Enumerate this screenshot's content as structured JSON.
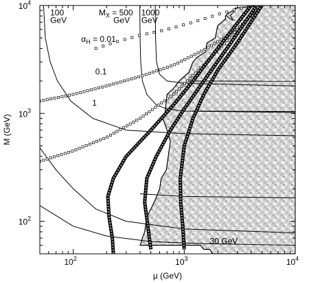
{
  "chart_data": {
    "type": "line",
    "title": "",
    "xlabel": "μ (GeV)",
    "ylabel": "M (GeV)",
    "xscale": "log",
    "yscale": "log",
    "xlim": [
      50,
      10000
    ],
    "ylim": [
      50,
      10000
    ],
    "x_ticks": [
      {
        "value": 100,
        "label": "10",
        "exp": "2"
      },
      {
        "value": 1000,
        "label": "10",
        "exp": "3"
      },
      {
        "value": 10000,
        "label": "10",
        "exp": "4"
      }
    ],
    "y_ticks": [
      {
        "value": 100,
        "label": "10",
        "exp": "2"
      },
      {
        "value": 1000,
        "label": "10",
        "exp": "3"
      },
      {
        "value": 10000,
        "label": "10",
        "exp": "4"
      }
    ],
    "excluded_region": {
      "style": "stippled-grey",
      "boundary": [
        [
          4800,
          10000
        ],
        [
          3000,
          9500
        ],
        [
          2500,
          8500
        ],
        [
          2350,
          8000
        ],
        [
          2350,
          7500
        ],
        [
          2000,
          6500
        ],
        [
          1900,
          5000
        ],
        [
          1600,
          4500
        ],
        [
          1550,
          3700
        ],
        [
          1300,
          3300
        ],
        [
          1200,
          3000
        ],
        [
          1100,
          2400
        ],
        [
          1000,
          2200
        ],
        [
          900,
          2000
        ],
        [
          800,
          1700
        ],
        [
          700,
          1500
        ],
        [
          670,
          1000
        ],
        [
          640,
          900
        ],
        [
          700,
          700
        ],
        [
          750,
          550
        ],
        [
          690,
          300
        ],
        [
          620,
          250
        ],
        [
          600,
          200
        ],
        [
          550,
          160
        ],
        [
          500,
          130
        ],
        [
          460,
          110
        ],
        [
          440,
          80
        ],
        [
          420,
          70
        ],
        [
          410,
          64
        ],
        [
          400,
          60
        ],
        [
          1400,
          60
        ],
        [
          1500,
          55
        ],
        [
          1700,
          55
        ],
        [
          1800,
          50
        ],
        [
          10000,
          50
        ],
        [
          10000,
          10000
        ]
      ]
    },
    "series": [
      {
        "name": "M_X = 100 GeV",
        "style": "solid-thin",
        "points": [
          [
            54,
            10000
          ],
          [
            56,
            5000
          ],
          [
            62,
            3000
          ],
          [
            72,
            2000
          ],
          [
            95,
            1300
          ],
          [
            150,
            900
          ],
          [
            300,
            700
          ],
          [
            1000,
            650
          ],
          [
            10000,
            620
          ]
        ]
      },
      {
        "name": "M_X = 500 GeV",
        "style": "solid-thin",
        "points": [
          [
            398,
            10000
          ],
          [
            400,
            5000
          ],
          [
            405,
            3000
          ],
          [
            420,
            2000
          ],
          [
            460,
            1500
          ],
          [
            560,
            1200
          ],
          [
            700,
            1100
          ],
          [
            1000,
            1050
          ],
          [
            10000,
            1020
          ]
        ]
      },
      {
        "name": "M_X = 1000 GeV",
        "style": "solid-thin",
        "points": [
          [
            548,
            10000
          ],
          [
            552,
            5000
          ],
          [
            562,
            3000
          ],
          [
            600,
            2300
          ],
          [
            700,
            2000
          ],
          [
            1000,
            1900
          ],
          [
            10000,
            1800
          ]
        ]
      },
      {
        "name": "M_X = 30 GeV",
        "style": "solid-thin",
        "points": [
          [
            50,
            480
          ],
          [
            70,
            300
          ],
          [
            100,
            200
          ],
          [
            160,
            130
          ],
          [
            300,
            100
          ],
          [
            1000,
            85
          ],
          [
            10000,
            78
          ]
        ]
      },
      {
        "name": "",
        "style": "solid-thin",
        "points": [
          [
            50,
            140
          ],
          [
            100,
            90
          ],
          [
            200,
            73
          ],
          [
            500,
            65
          ],
          [
            1500,
            62
          ],
          [
            10000,
            60
          ]
        ]
      },
      {
        "name": "",
        "style": "solid-thin",
        "points": [
          [
            400,
            180
          ],
          [
            1000,
            170
          ],
          [
            10000,
            165
          ]
        ]
      },
      {
        "name": "",
        "style": "solid-thin",
        "points": [
          [
            1300,
            1050
          ],
          [
            10000,
            1040
          ]
        ]
      },
      {
        "name": "",
        "style": "solid-thin",
        "points": [
          [
            1100,
            2000
          ],
          [
            10000,
            1990
          ]
        ]
      },
      {
        "name": "",
        "style": "solid-thin",
        "points": [
          [
            2900,
            9600
          ],
          [
            2820,
            9100
          ],
          [
            2760,
            8600
          ],
          [
            2600,
            8100
          ],
          [
            2750,
            7300
          ],
          [
            2550,
            7600
          ],
          [
            2450,
            7900
          ],
          [
            2380,
            8100
          ]
        ]
      },
      {
        "name": "α_H = 0.01",
        "style": "open-squares",
        "points": [
          [
            160,
            4000
          ],
          [
            260,
            4700
          ],
          [
            400,
            5300
          ],
          [
            700,
            6000
          ],
          [
            1200,
            7000
          ],
          [
            2200,
            8500
          ],
          [
            4000,
            10000
          ]
        ]
      },
      {
        "name": "α_H = 0.1",
        "style": "open-squares",
        "points": [
          [
            50,
            1300
          ],
          [
            100,
            1500
          ],
          [
            200,
            1800
          ],
          [
            400,
            2200
          ],
          [
            800,
            2800
          ],
          [
            1600,
            4000
          ],
          [
            3000,
            6000
          ],
          [
            5000,
            10000
          ]
        ]
      },
      {
        "name": "α_H = 1",
        "style": "open-squares",
        "points": [
          [
            50,
            360
          ],
          [
            100,
            450
          ],
          [
            200,
            600
          ],
          [
            400,
            900
          ],
          [
            800,
            1500
          ],
          [
            1600,
            3000
          ],
          [
            3000,
            6000
          ],
          [
            4800,
            10000
          ]
        ]
      },
      {
        "name": "",
        "style": "thick-band",
        "points": [
          [
            4000,
            10000
          ],
          [
            2000,
            4000
          ],
          [
            1200,
            2000
          ],
          [
            800,
            1200
          ],
          [
            500,
            700
          ],
          [
            300,
            400
          ],
          [
            230,
            250
          ],
          [
            205,
            170
          ],
          [
            210,
            110
          ],
          [
            225,
            70
          ],
          [
            230,
            50
          ]
        ]
      },
      {
        "name": "",
        "style": "thick-band",
        "points": [
          [
            4500,
            10000
          ],
          [
            2500,
            4200
          ],
          [
            1500,
            2000
          ],
          [
            1000,
            1100
          ],
          [
            750,
            700
          ],
          [
            560,
            400
          ],
          [
            460,
            250
          ],
          [
            440,
            150
          ],
          [
            470,
            90
          ],
          [
            500,
            55
          ]
        ]
      },
      {
        "name": "",
        "style": "thick-band",
        "points": [
          [
            5000,
            10000
          ],
          [
            3000,
            4500
          ],
          [
            2000,
            2500
          ],
          [
            1500,
            1500
          ],
          [
            1200,
            900
          ],
          [
            1000,
            500
          ],
          [
            920,
            250
          ],
          [
            930,
            150
          ],
          [
            970,
            90
          ],
          [
            1000,
            55
          ]
        ]
      }
    ],
    "annotations": [
      {
        "text": "100",
        "x": 62,
        "y": 8100
      },
      {
        "text": "GeV",
        "x": 62,
        "y": 6900
      },
      {
        "text": "M",
        "sub": "X",
        "suffix": " = 500",
        "x": 170,
        "y": 8100
      },
      {
        "text": "GeV",
        "x": 230,
        "y": 6900
      },
      {
        "text": "1000",
        "x": 410,
        "y": 8100
      },
      {
        "text": "GeV",
        "x": 410,
        "y": 6900
      },
      {
        "text": "α",
        "sub": "H",
        "suffix": " = 0.01",
        "x": 118,
        "y": 4600
      },
      {
        "text": "0.1",
        "x": 158,
        "y": 2300
      },
      {
        "text": "1",
        "x": 148,
        "y": 1180
      },
      {
        "text": "30 GeV",
        "x": 1700,
        "y": 62
      }
    ]
  }
}
